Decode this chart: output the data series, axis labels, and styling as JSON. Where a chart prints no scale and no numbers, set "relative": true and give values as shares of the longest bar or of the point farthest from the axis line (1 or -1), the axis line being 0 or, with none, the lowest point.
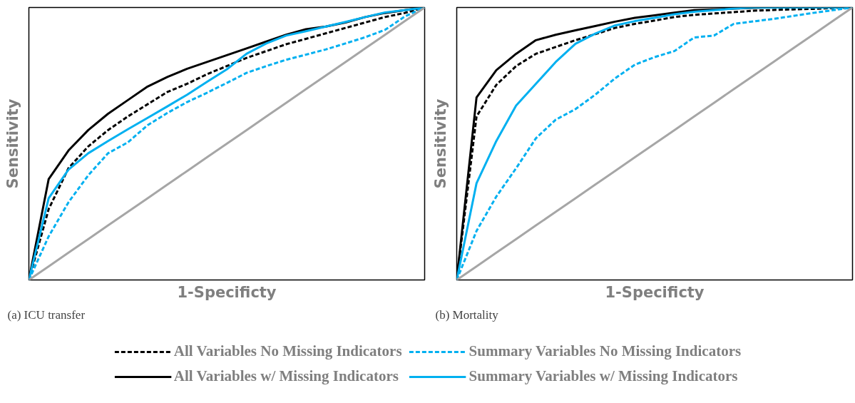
{
  "chart_data": [
    {
      "type": "line",
      "relative": true,
      "xlabel": "1-Specificty",
      "ylabel": "Sensitivity",
      "annotations": [
        "(a) ICU transfer"
      ],
      "grid": false,
      "legend": "bottom",
      "categories": [
        null,
        null,
        null,
        null,
        null,
        null,
        null,
        null,
        null,
        null,
        null,
        null,
        null,
        null,
        null,
        null,
        null,
        null,
        null,
        null,
        null
      ],
      "series": [
        {
          "name": "All Variables No Missing Indicators",
          "color": "#000000",
          "line_style": "dashed",
          "values": [
            0,
            0.26,
            0.41,
            0.49,
            0.55,
            0.6,
            0.645,
            0.69,
            0.72,
            0.755,
            0.785,
            0.815,
            0.84,
            0.865,
            0.885,
            0.905,
            0.925,
            0.945,
            0.965,
            0.98,
            1
          ]
        },
        {
          "name": "All Variables w/ Missing Indicators",
          "color": "#000000",
          "line_style": "solid",
          "values": [
            0,
            0.37,
            0.475,
            0.55,
            0.61,
            0.66,
            0.71,
            0.745,
            0.775,
            0.8,
            0.825,
            0.85,
            0.875,
            0.9,
            0.92,
            0.93,
            0.945,
            0.965,
            0.98,
            0.99,
            1
          ]
        },
        {
          "name": "Summary Variables No Missing Indicators",
          "color": "#00b0f0",
          "line_style": "dashed",
          "values": [
            0,
            0.16,
            0.285,
            0.384,
            0.465,
            0.505,
            0.568,
            0.613,
            0.653,
            0.687,
            0.723,
            0.76,
            0.785,
            0.808,
            0.827,
            0.846,
            0.868,
            0.891,
            0.918,
            0.967,
            1
          ]
        },
        {
          "name": "Summary Variables w/ Missing Indicators",
          "color": "#00b0f0",
          "line_style": "solid",
          "values": [
            0,
            0.3,
            0.405,
            0.465,
            0.51,
            0.553,
            0.595,
            0.637,
            0.68,
            0.727,
            0.773,
            0.83,
            0.868,
            0.897,
            0.913,
            0.93,
            0.947,
            0.965,
            0.982,
            0.99,
            1
          ]
        },
        {
          "color": "#a6a6a6",
          "line_style": "solid",
          "values": [
            0,
            0.05,
            0.1,
            0.15,
            0.2,
            0.25,
            0.3,
            0.35,
            0.4,
            0.45,
            0.5,
            0.55,
            0.6,
            0.65,
            0.7,
            0.75,
            0.8,
            0.85,
            0.9,
            0.95,
            1
          ]
        }
      ]
    },
    {
      "type": "line",
      "relative": true,
      "xlabel": "1-Specificty",
      "ylabel": "Sensitivity",
      "annotations": [
        "(b) Mortality"
      ],
      "grid": false,
      "categories": [
        null,
        null,
        null,
        null,
        null,
        null,
        null,
        null,
        null,
        null,
        null,
        null,
        null,
        null,
        null,
        null,
        null,
        null,
        null,
        null,
        null
      ],
      "series": [
        {
          "color": "#000000",
          "line_style": "dashed",
          "values": [
            0,
            0.6,
            0.716,
            0.785,
            0.83,
            0.855,
            0.88,
            0.902,
            0.925,
            0.94,
            0.952,
            0.965,
            0.973,
            0.978,
            0.983,
            0.988,
            0.991,
            0.993,
            0.995,
            0.998,
            1
          ]
        },
        {
          "color": "#000000",
          "line_style": "solid",
          "values": [
            0,
            0.67,
            0.77,
            0.83,
            0.88,
            0.9,
            0.916,
            0.932,
            0.948,
            0.962,
            0.971,
            0.981,
            0.99,
            0.993,
            0.996,
            0.999,
            1,
            1,
            1,
            1,
            1
          ]
        },
        {
          "color": "#00b0f0",
          "line_style": "dashed",
          "values": [
            0,
            0.18,
            0.306,
            0.41,
            0.52,
            0.588,
            0.627,
            0.68,
            0.74,
            0.79,
            0.818,
            0.84,
            0.89,
            0.897,
            0.94,
            0.949,
            0.958,
            0.969,
            0.98,
            0.99,
            1
          ]
        },
        {
          "color": "#00b0f0",
          "line_style": "solid",
          "values": [
            0,
            0.355,
            0.51,
            0.64,
            0.72,
            0.8,
            0.867,
            0.904,
            0.934,
            0.95,
            0.962,
            0.975,
            0.984,
            0.99,
            0.996,
            1,
            1,
            1,
            1,
            1,
            1
          ]
        },
        {
          "color": "#a6a6a6",
          "line_style": "solid",
          "values": [
            0,
            0.05,
            0.1,
            0.15,
            0.2,
            0.25,
            0.3,
            0.35,
            0.4,
            0.45,
            0.5,
            0.55,
            0.6,
            0.65,
            0.7,
            0.75,
            0.8,
            0.85,
            0.9,
            0.95,
            1
          ]
        }
      ]
    }
  ]
}
